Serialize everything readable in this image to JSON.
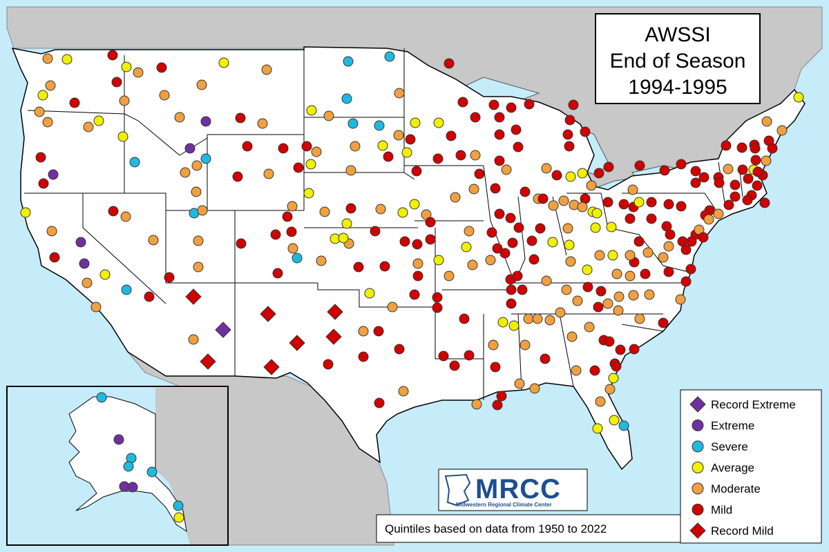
{
  "title": {
    "line1": "AWSSI",
    "line2": "End of Season",
    "line3": "1994-1995"
  },
  "note": "Quintiles based on data from 1950 to 2022",
  "logo": {
    "name": "MRCC",
    "subtitle": "Midwestern Regional Climate Center"
  },
  "legend": [
    {
      "key": "record_extreme",
      "label": "Record Extreme",
      "shape": "diamond",
      "color": "#7030a0"
    },
    {
      "key": "extreme",
      "label": "Extreme",
      "shape": "circle",
      "color": "#7030a0"
    },
    {
      "key": "severe",
      "label": "Severe",
      "shape": "circle",
      "color": "#1fb9e0"
    },
    {
      "key": "average",
      "label": "Average",
      "shape": "circle",
      "color": "#f0f000"
    },
    {
      "key": "moderate",
      "label": "Moderate",
      "shape": "circle",
      "color": "#f0a040"
    },
    {
      "key": "mild",
      "label": "Mild",
      "shape": "circle",
      "color": "#d00000"
    },
    {
      "key": "record_mild",
      "label": "Record Mild",
      "shape": "diamond",
      "color": "#d00000"
    }
  ],
  "colors": {
    "land": "#ffffff",
    "water": "#c6ecfa",
    "outside": "#c8c8c8",
    "border": "#000000"
  }
}
